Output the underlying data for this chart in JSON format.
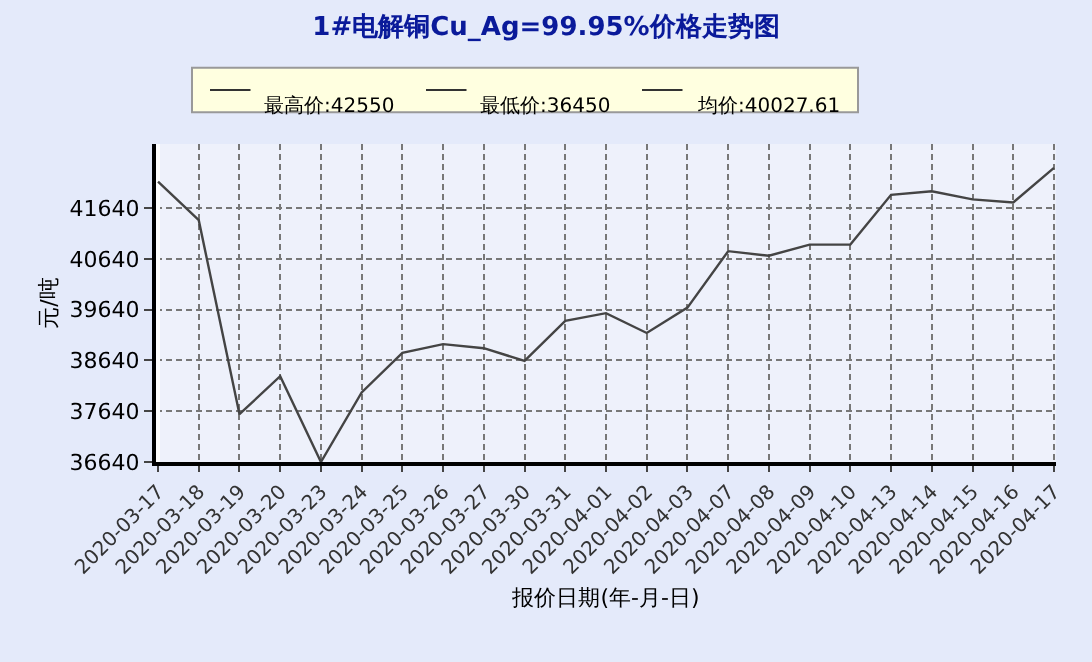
{
  "chart_data": {
    "type": "line",
    "title": "1#电解铜Cu_Ag=99.95%价格走势图",
    "xlabel": "报价日期(年-月-日)",
    "ylabel": "元/吨",
    "categories": [
      "2020-03-17",
      "2020-03-18",
      "2020-03-19",
      "2020-03-20",
      "2020-03-23",
      "2020-03-24",
      "2020-03-25",
      "2020-03-26",
      "2020-03-27",
      "2020-03-30",
      "2020-03-31",
      "2020-04-01",
      "2020-04-02",
      "2020-04-03",
      "2020-04-07",
      "2020-04-08",
      "2020-04-09",
      "2020-04-10",
      "2020-04-13",
      "2020-04-14",
      "2020-04-15",
      "2020-04-16",
      "2020-04-17"
    ],
    "series": [
      {
        "color": "#444444",
        "values": [
          42160,
          41400,
          37580,
          38330,
          36640,
          38010,
          38790,
          38960,
          38880,
          38630,
          39420,
          39570,
          39180,
          39680,
          40790,
          40700,
          40920,
          40920,
          41900,
          41970,
          41810,
          41750,
          42430
        ]
      }
    ],
    "ylim": [
      36640,
      42900
    ],
    "yticks": [
      36640,
      37640,
      38640,
      39640,
      40640,
      41640
    ],
    "grid": true,
    "marker": "none",
    "line_style": "solid",
    "annotations": [
      "最高价:42550",
      "最低价:36450",
      "均价:40027.61"
    ]
  }
}
